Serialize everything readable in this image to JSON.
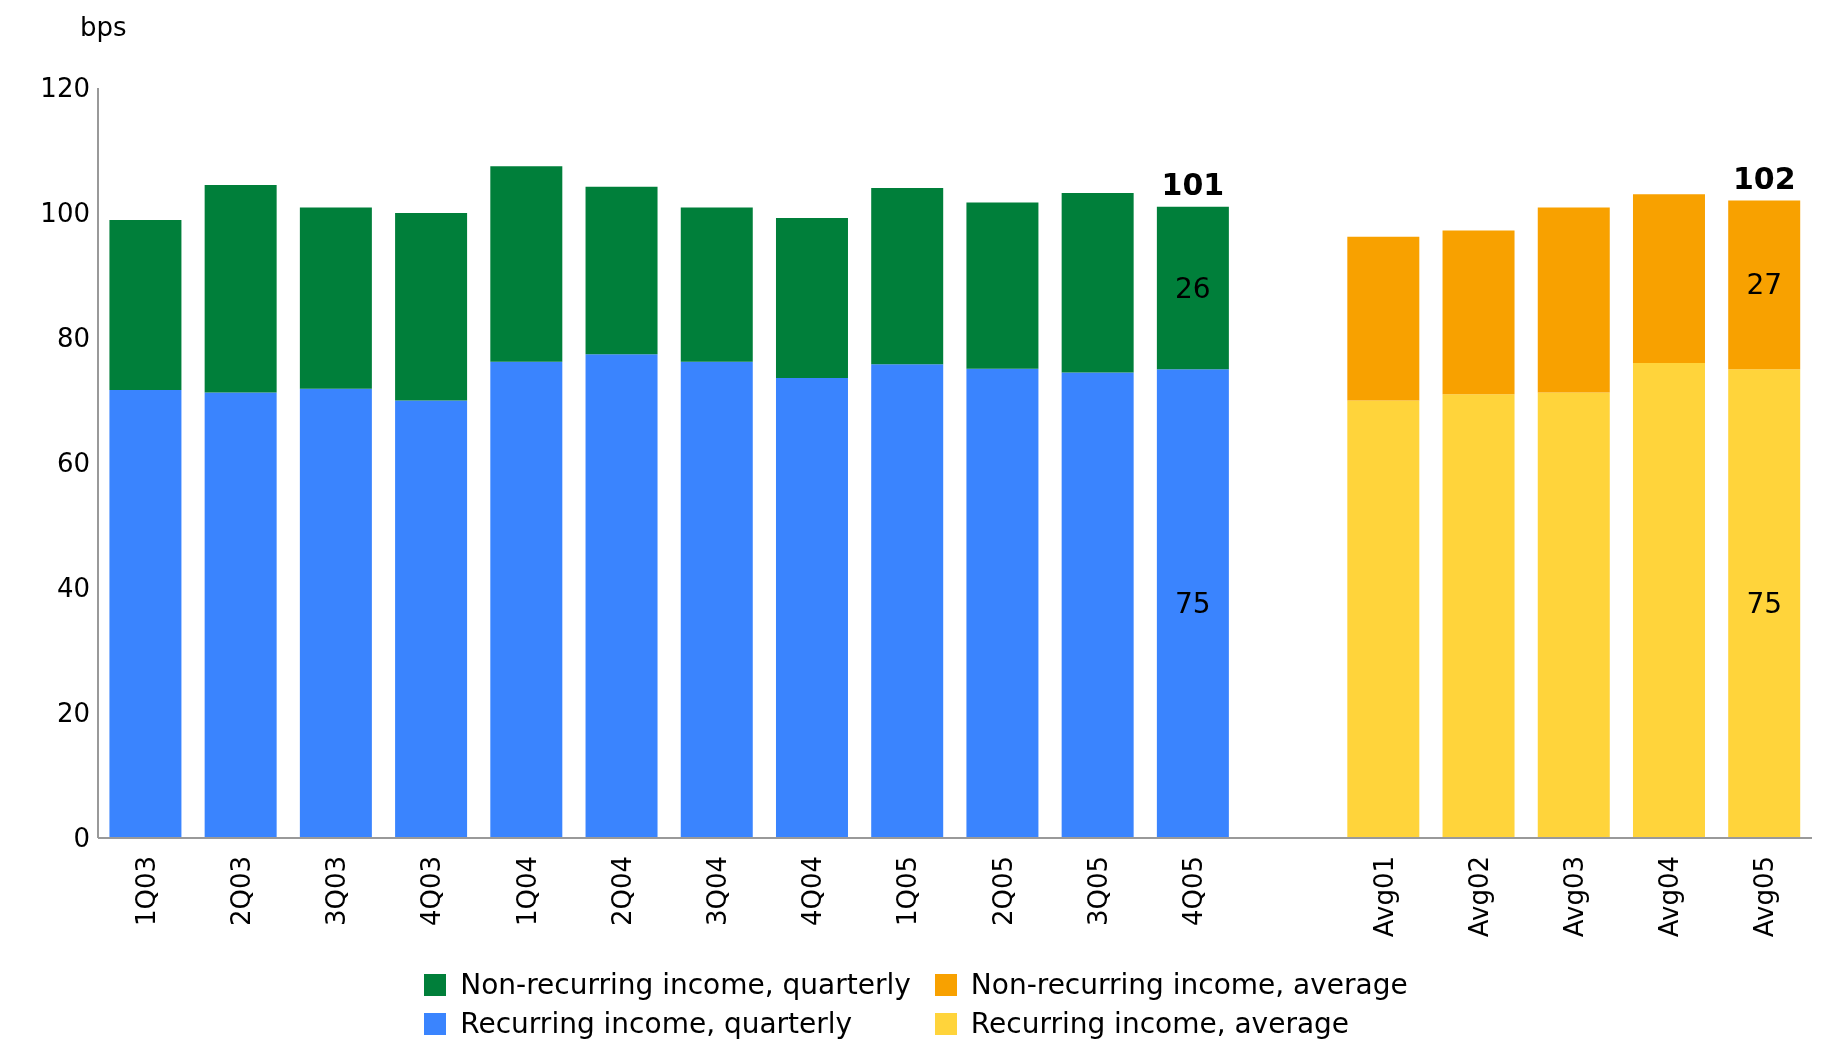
{
  "chart_data": {
    "type": "bar",
    "stacked": true,
    "ylabel": "bps",
    "ylim": [
      0,
      120
    ],
    "yticks": [
      0,
      20,
      40,
      60,
      80,
      100,
      120
    ],
    "legend": "bottom",
    "categories": [
      "1Q03",
      "2Q03",
      "3Q03",
      "4Q03",
      "1Q04",
      "2Q04",
      "3Q04",
      "4Q04",
      "1Q05",
      "2Q05",
      "3Q05",
      "4Q05",
      null,
      "Avg01",
      "Avg02",
      "Avg03",
      "Avg04",
      "Avg05"
    ],
    "series": [
      {
        "name": "Recurring income, quarterly",
        "color": "#3a84fe",
        "values": [
          71.7,
          71.3,
          71.9,
          70,
          76.2,
          77.4,
          76.2,
          73.6,
          75.8,
          75.1,
          74.5,
          75,
          null,
          null,
          null,
          null,
          null,
          null
        ],
        "value_labels": [
          null,
          null,
          null,
          null,
          null,
          null,
          null,
          null,
          null,
          null,
          null,
          "75",
          null,
          null,
          null,
          null,
          null,
          null
        ]
      },
      {
        "name": "Non-recurring income, quarterly",
        "color": "#007f3a",
        "values": [
          27.2,
          33.2,
          29,
          30,
          31.3,
          26.8,
          24.7,
          25.6,
          28.2,
          26.6,
          28.7,
          26,
          null,
          null,
          null,
          null,
          null,
          null
        ],
        "value_labels": [
          null,
          null,
          null,
          null,
          null,
          null,
          null,
          null,
          null,
          null,
          null,
          "26",
          null,
          null,
          null,
          null,
          null,
          null
        ]
      },
      {
        "name": "Recurring income, average",
        "color": "#ffd43b",
        "values": [
          null,
          null,
          null,
          null,
          null,
          null,
          null,
          null,
          null,
          null,
          null,
          null,
          null,
          70,
          71,
          71.3,
          76,
          75
        ],
        "value_labels": [
          null,
          null,
          null,
          null,
          null,
          null,
          null,
          null,
          null,
          null,
          null,
          null,
          null,
          null,
          null,
          null,
          null,
          "75"
        ]
      },
      {
        "name": "Non-recurring income, average",
        "color": "#f8a100",
        "values": [
          null,
          null,
          null,
          null,
          null,
          null,
          null,
          null,
          null,
          null,
          null,
          null,
          null,
          26.2,
          26.2,
          29.6,
          27,
          27
        ],
        "value_labels": [
          null,
          null,
          null,
          null,
          null,
          null,
          null,
          null,
          null,
          null,
          null,
          null,
          null,
          null,
          null,
          null,
          null,
          "27"
        ]
      }
    ],
    "totals": [
      null,
      null,
      null,
      null,
      null,
      null,
      null,
      null,
      null,
      null,
      null,
      "101",
      null,
      null,
      null,
      null,
      null,
      "102"
    ]
  }
}
